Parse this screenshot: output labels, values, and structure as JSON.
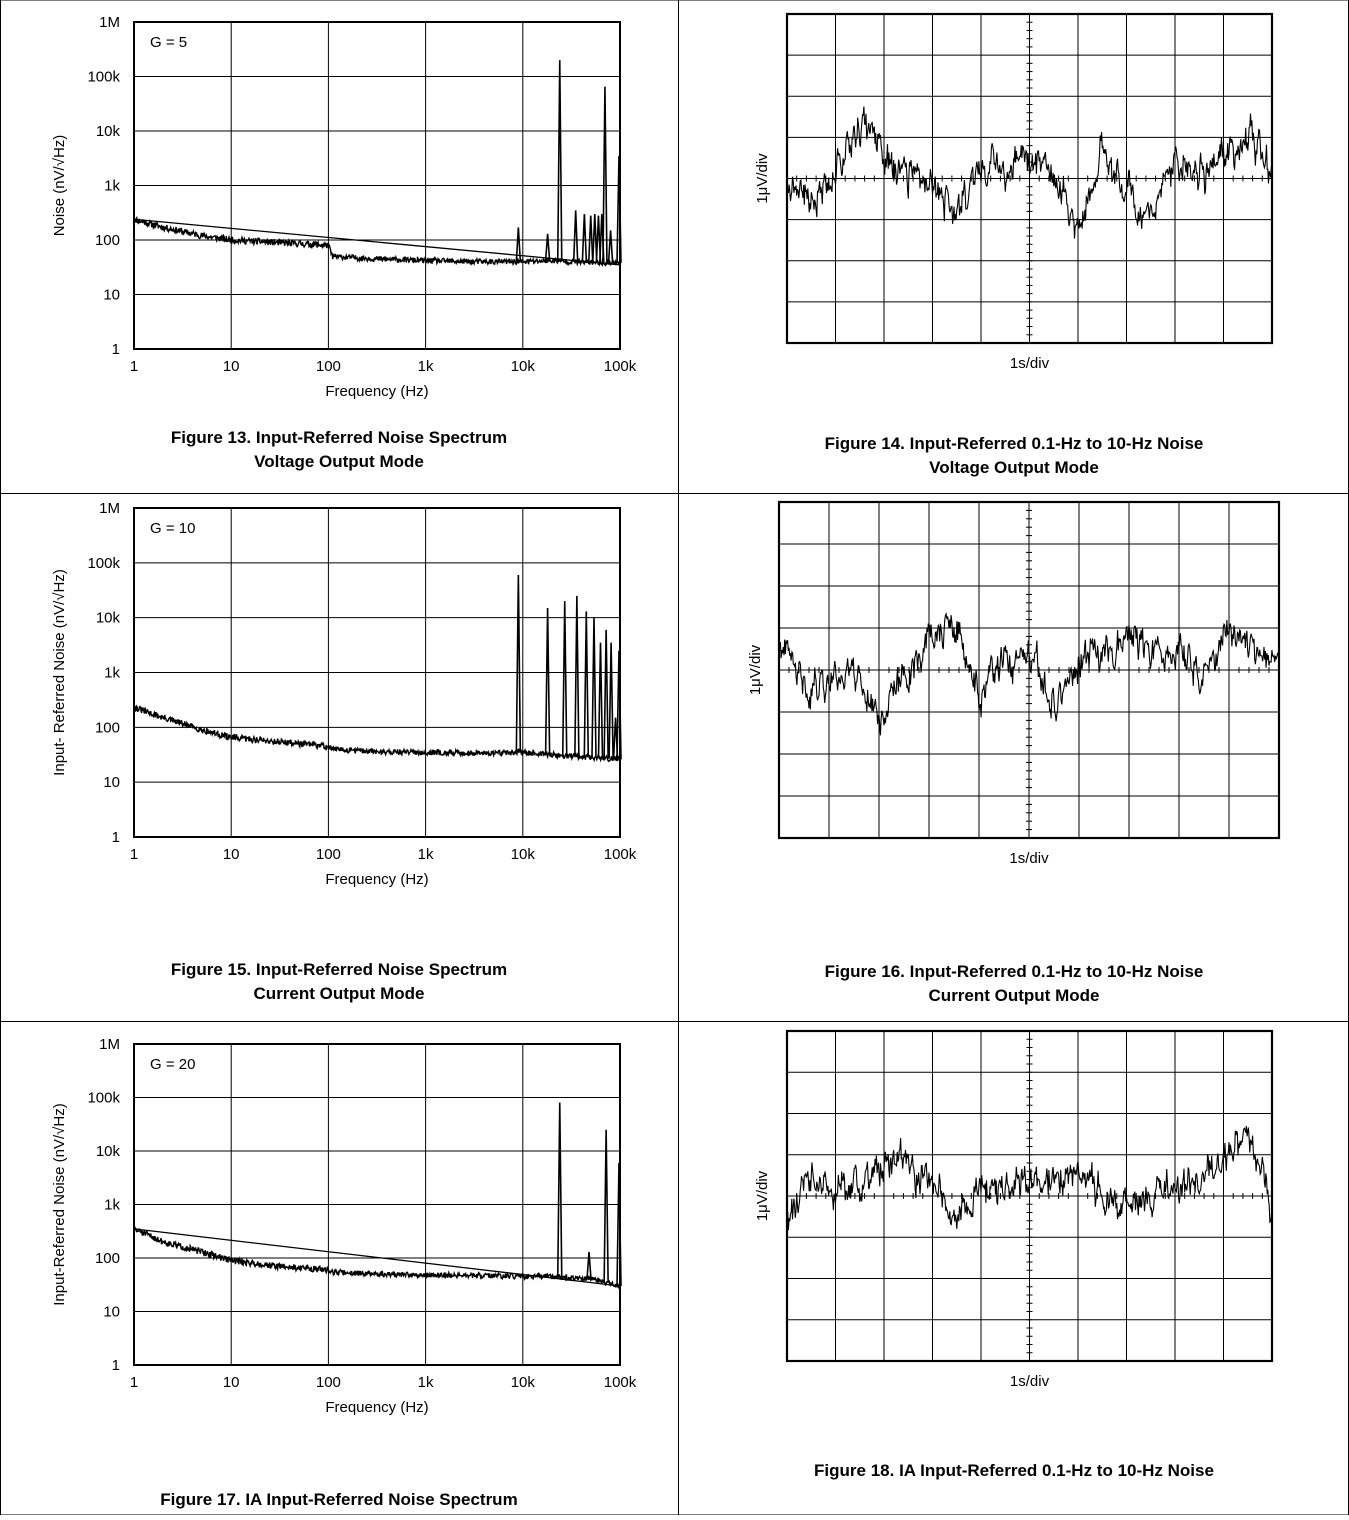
{
  "chart_data": [
    {
      "id": "fig13",
      "type": "line",
      "caption": [
        "Figure 13. Input-Referred Noise Spectrum",
        "Voltage Output Mode"
      ],
      "annotation": "G = 5",
      "xlabel": "Frequency (Hz)",
      "ylabel": "Noise (nV/√Hz)",
      "x_scale": "log",
      "y_scale": "log",
      "xlim": [
        1,
        100000
      ],
      "ylim": [
        1,
        1000000
      ],
      "x_ticks": [
        "1",
        "10",
        "100",
        "1k",
        "10k",
        "100k"
      ],
      "y_ticks": [
        "1",
        "10",
        "100",
        "1k",
        "10k",
        "100k",
        "1M"
      ],
      "grid": true,
      "series": [
        {
          "kind": "noise",
          "x": [
            1,
            2,
            5,
            10,
            30,
            100,
            110,
            300,
            1000,
            3000,
            10000,
            20000,
            30000,
            100000
          ],
          "y": [
            240,
            170,
            120,
            100,
            90,
            80,
            50,
            45,
            42,
            40,
            40,
            42,
            40,
            38
          ]
        },
        {
          "kind": "trend",
          "x": [
            1,
            100000
          ],
          "y": [
            240,
            35
          ]
        },
        {
          "kind": "spikes",
          "x": [
            9000,
            18000,
            24000,
            35000,
            43000,
            50000,
            55000,
            60000,
            65000,
            70000,
            80000,
            100000
          ],
          "y": [
            170,
            130,
            200000,
            350,
            300,
            280,
            300,
            280,
            300,
            65000,
            150,
            3500
          ]
        }
      ]
    },
    {
      "id": "fig14",
      "type": "line",
      "caption": [
        "Figure 14. Input-Referred 0.1-Hz to 10-Hz Noise",
        "Voltage Output Mode"
      ],
      "xlabel": "1s/div",
      "ylabel": "1μV/div",
      "divisions": [
        10,
        8
      ],
      "grid": true,
      "series": [
        {
          "name": "",
          "x": [
            0,
            0.5,
            1,
            1.5,
            2,
            2.5,
            3,
            3.5,
            4,
            4.5,
            5,
            5.5,
            6,
            6.5,
            7,
            7.5,
            8,
            8.5,
            9,
            9.5,
            10
          ],
          "y": [
            0,
            -0.6,
            0.3,
            1.4,
            0.6,
            0,
            -0.2,
            -0.8,
            0.4,
            0.3,
            0.4,
            0.2,
            -1.3,
            0.6,
            -0.2,
            -0.9,
            0.3,
            0.1,
            0.5,
            1.1,
            0
          ]
        }
      ]
    },
    {
      "id": "fig15",
      "type": "line",
      "caption": [
        "Figure 15. Input-Referred Noise Spectrum",
        "Current Output Mode"
      ],
      "annotation": "G = 10",
      "xlabel": "Frequency (Hz)",
      "ylabel": "Input- Referred Noise (nV/√Hz)",
      "x_scale": "log",
      "y_scale": "log",
      "xlim": [
        1,
        100000
      ],
      "ylim": [
        1,
        1000000
      ],
      "x_ticks": [
        "1",
        "10",
        "100",
        "1k",
        "10k",
        "100k"
      ],
      "y_ticks": [
        "1",
        "10",
        "100",
        "1k",
        "10k",
        "100k",
        "1M"
      ],
      "grid": true,
      "series": [
        {
          "kind": "noise",
          "x": [
            1,
            2,
            5,
            10,
            30,
            100,
            110,
            300,
            1000,
            3000,
            10000,
            30000,
            100000
          ],
          "y": [
            230,
            150,
            90,
            65,
            55,
            45,
            40,
            36,
            35,
            34,
            35,
            30,
            26
          ]
        },
        {
          "kind": "spikes",
          "x": [
            9000,
            18000,
            27000,
            36000,
            45000,
            54000,
            63000,
            72000,
            81000,
            90000,
            100000
          ],
          "y": [
            60000,
            15000,
            20000,
            25000,
            13000,
            10000,
            3500,
            6000,
            3500,
            150,
            2500
          ]
        }
      ]
    },
    {
      "id": "fig16",
      "type": "line",
      "caption": [
        "Figure 16. Input-Referred 0.1-Hz to 10-Hz Noise",
        "Current Output Mode"
      ],
      "xlabel": "1s/div",
      "ylabel": "1μV/div",
      "divisions": [
        10,
        8
      ],
      "grid": true,
      "series": [
        {
          "name": "",
          "x": [
            0,
            0.5,
            1,
            1.5,
            2,
            2.5,
            3,
            3.5,
            4,
            4.5,
            5,
            5.5,
            6,
            6.5,
            7,
            7.5,
            8,
            8.5,
            9,
            9.5,
            10
          ],
          "y": [
            0.6,
            -0.4,
            -0.2,
            0.1,
            -1.1,
            -0.2,
            0.8,
            1.0,
            -0.6,
            0.1,
            0.2,
            -0.8,
            0.1,
            0.5,
            0.9,
            0.3,
            0.4,
            -0.1,
            0.9,
            0.7,
            0
          ]
        }
      ]
    },
    {
      "id": "fig17",
      "type": "line",
      "caption": [
        "Figure 17. IA Input-Referred Noise Spectrum"
      ],
      "annotation": "G = 20",
      "xlabel": "Frequency (Hz)",
      "ylabel": "Input-Referred Noise (nV/√Hz)",
      "x_scale": "log",
      "y_scale": "log",
      "xlim": [
        1,
        100000
      ],
      "ylim": [
        1,
        1000000
      ],
      "x_ticks": [
        "1",
        "10",
        "100",
        "1k",
        "10k",
        "100k"
      ],
      "y_ticks": [
        "1",
        "10",
        "100",
        "1k",
        "10k",
        "100k",
        "1M"
      ],
      "grid": true,
      "series": [
        {
          "kind": "noise",
          "x": [
            1,
            2,
            5,
            10,
            30,
            100,
            110,
            300,
            1000,
            3000,
            10000,
            20000,
            50000,
            100000
          ],
          "y": [
            350,
            200,
            130,
            90,
            70,
            60,
            55,
            50,
            48,
            47,
            45,
            45,
            40,
            30
          ]
        },
        {
          "kind": "trend",
          "x": [
            1,
            100000
          ],
          "y": [
            350,
            30
          ]
        },
        {
          "kind": "spikes",
          "x": [
            24000,
            48000,
            72000,
            100000
          ],
          "y": [
            80000,
            130,
            25000,
            6000
          ]
        }
      ]
    },
    {
      "id": "fig18",
      "type": "line",
      "caption": [
        "Figure 18.  IA Input-Referred 0.1-Hz to 10-Hz Noise"
      ],
      "xlabel": "1s/div",
      "ylabel": "1μV/div",
      "divisions": [
        10,
        8
      ],
      "grid": true,
      "series": [
        {
          "name": "",
          "x": [
            0,
            0.5,
            1,
            1.5,
            2,
            2.5,
            3,
            3.5,
            4,
            4.5,
            5,
            5.5,
            6,
            6.5,
            7,
            7.5,
            8,
            8.5,
            9,
            9.5,
            10
          ],
          "y": [
            -0.5,
            0.4,
            0,
            0.2,
            0.8,
            0.6,
            0.4,
            -0.6,
            0.3,
            0.2,
            0.3,
            0.4,
            0.5,
            0.1,
            -0.3,
            0.1,
            0.2,
            0.3,
            0.9,
            1.5,
            0
          ]
        }
      ]
    }
  ]
}
